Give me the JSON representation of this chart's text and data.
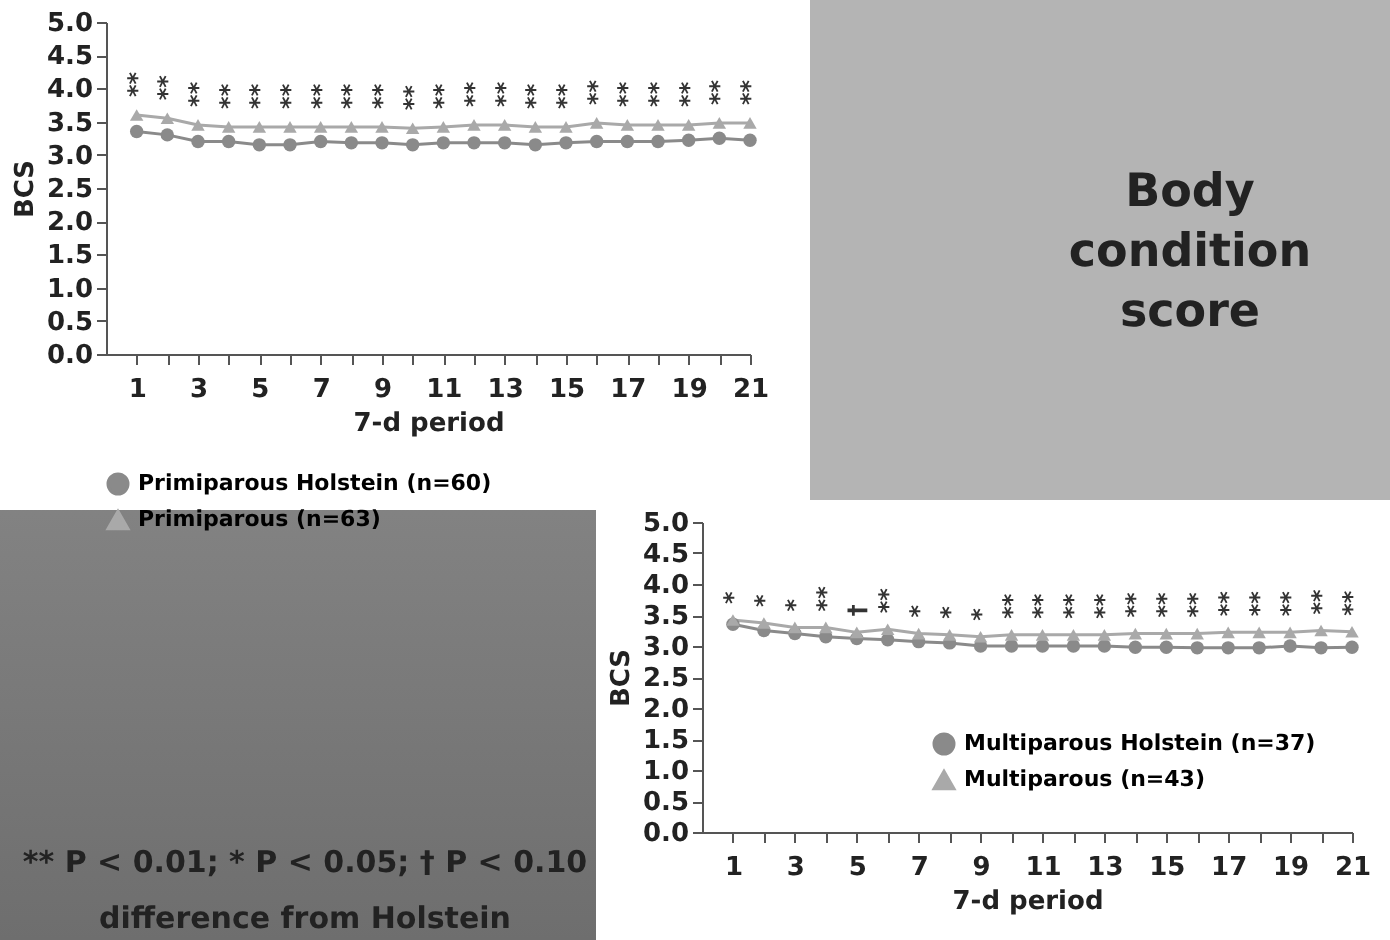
{
  "chart_data": [
    {
      "type": "line",
      "xlabel": "7-d period",
      "ylabel": "BCS",
      "x": [
        1,
        2,
        3,
        4,
        5,
        6,
        7,
        8,
        9,
        10,
        11,
        12,
        13,
        14,
        15,
        16,
        17,
        18,
        19,
        20,
        21
      ],
      "series": [
        {
          "name": "Primiparous Holstein (n=60)",
          "color": "#8a8a8a",
          "marker": "circle",
          "values": [
            3.35,
            3.3,
            3.2,
            3.2,
            3.15,
            3.15,
            3.2,
            3.18,
            3.18,
            3.15,
            3.18,
            3.18,
            3.18,
            3.15,
            3.18,
            3.2,
            3.2,
            3.2,
            3.22,
            3.25,
            3.22
          ]
        },
        {
          "name": "Primiparous (n=63)",
          "color": "#a9a9a9",
          "marker": "triangle",
          "values": [
            3.6,
            3.55,
            3.45,
            3.42,
            3.42,
            3.42,
            3.42,
            3.42,
            3.42,
            3.4,
            3.42,
            3.45,
            3.45,
            3.42,
            3.42,
            3.48,
            3.45,
            3.45,
            3.45,
            3.48,
            3.48
          ]
        }
      ],
      "xlim": [
        0,
        21
      ],
      "xticks": [
        1,
        {
          "value": 2,
          "label": null
        },
        3,
        {
          "value": 4,
          "label": null
        },
        5,
        {
          "value": 6,
          "label": null
        },
        7,
        {
          "value": 8,
          "label": null
        },
        9,
        {
          "value": 10,
          "label": null
        },
        11,
        {
          "value": 12,
          "label": null
        },
        13,
        {
          "value": 14,
          "label": null
        },
        15,
        {
          "value": 16,
          "label": null
        },
        17,
        {
          "value": 18,
          "label": null
        },
        19,
        {
          "value": 20,
          "label": null
        },
        21
      ],
      "ylim": [
        0,
        5
      ],
      "yticks": [
        {
          "value": 0,
          "label": "0.0"
        },
        0.5,
        {
          "value": 1,
          "label": "1.0"
        },
        1.5,
        {
          "value": 2,
          "label": "2.0"
        },
        2.5,
        {
          "value": 3,
          "label": "3.0"
        },
        3.5,
        {
          "value": 4,
          "label": "4.0"
        },
        4.5,
        {
          "value": 5,
          "label": "5.0"
        }
      ],
      "grid": false,
      "legend": "bottom left",
      "line_style": "solid",
      "annotations": [
        {
          "text": "**",
          "x": 1,
          "y": 3.6
        },
        {
          "text": "**",
          "x": 2,
          "y": 3.55
        },
        {
          "text": "**",
          "x": 3,
          "y": 3.45
        },
        {
          "text": "**",
          "x": 4,
          "y": 3.42
        },
        {
          "text": "**",
          "x": 5,
          "y": 3.42
        },
        {
          "text": "**",
          "x": 6,
          "y": 3.42
        },
        {
          "text": "**",
          "x": 7,
          "y": 3.42
        },
        {
          "text": "**",
          "x": 8,
          "y": 3.42
        },
        {
          "text": "**",
          "x": 9,
          "y": 3.42
        },
        {
          "text": "**",
          "x": 10,
          "y": 3.4
        },
        {
          "text": "**",
          "x": 11,
          "y": 3.42
        },
        {
          "text": "**",
          "x": 12,
          "y": 3.45
        },
        {
          "text": "**",
          "x": 13,
          "y": 3.45
        },
        {
          "text": "**",
          "x": 14,
          "y": 3.42
        },
        {
          "text": "**",
          "x": 15,
          "y": 3.42
        },
        {
          "text": "**",
          "x": 16,
          "y": 3.48
        },
        {
          "text": "**",
          "x": 17,
          "y": 3.45
        },
        {
          "text": "**",
          "x": 18,
          "y": 3.45
        },
        {
          "text": "**",
          "x": 19,
          "y": 3.45
        },
        {
          "text": "**",
          "x": 20,
          "y": 3.48
        },
        {
          "text": "**",
          "x": 21,
          "y": 3.48
        }
      ]
    },
    {
      "type": "line",
      "xlabel": "7-d period",
      "ylabel": "BCS",
      "x": [
        1,
        2,
        3,
        4,
        5,
        6,
        7,
        8,
        9,
        10,
        11,
        12,
        13,
        14,
        15,
        16,
        17,
        18,
        19,
        20,
        21
      ],
      "series": [
        {
          "name": "Multiparous Holstein (n=37)",
          "color": "#8a8a8a",
          "marker": "circle",
          "values": [
            3.35,
            3.25,
            3.2,
            3.15,
            3.12,
            3.1,
            3.07,
            3.05,
            3.0,
            3.0,
            3.0,
            3.0,
            3.0,
            2.98,
            2.98,
            2.97,
            2.97,
            2.97,
            3.0,
            2.97,
            2.98
          ]
        },
        {
          "name": "Multiparous (n=43)",
          "color": "#a9a9a9",
          "marker": "triangle",
          "values": [
            3.42,
            3.37,
            3.3,
            3.3,
            3.22,
            3.27,
            3.2,
            3.18,
            3.15,
            3.18,
            3.18,
            3.18,
            3.18,
            3.2,
            3.2,
            3.2,
            3.22,
            3.22,
            3.22,
            3.25,
            3.23
          ]
        }
      ],
      "xlim": [
        0,
        21
      ],
      "xticks": [
        1,
        {
          "value": 2,
          "label": null
        },
        3,
        {
          "value": 4,
          "label": null
        },
        5,
        {
          "value": 6,
          "label": null
        },
        7,
        {
          "value": 8,
          "label": null
        },
        9,
        {
          "value": 10,
          "label": null
        },
        11,
        {
          "value": 12,
          "label": null
        },
        13,
        {
          "value": 14,
          "label": null
        },
        15,
        {
          "value": 16,
          "label": null
        },
        17,
        {
          "value": 18,
          "label": null
        },
        19,
        {
          "value": 20,
          "label": null
        },
        21
      ],
      "ylim": [
        0,
        5
      ],
      "yticks": [
        {
          "value": 0,
          "label": "0.0"
        },
        0.5,
        {
          "value": 1,
          "label": "1.0"
        },
        1.5,
        {
          "value": 2,
          "label": "2.0"
        },
        2.5,
        {
          "value": 3,
          "label": "3.0"
        },
        3.5,
        {
          "value": 4,
          "label": "4.0"
        },
        4.5,
        {
          "value": 5,
          "label": "5.0"
        }
      ],
      "grid": false,
      "legend": "bottom right",
      "line_style": "solid",
      "annotations": [
        {
          "text": "*",
          "x": 1,
          "y": 3.42
        },
        {
          "text": "*",
          "x": 2,
          "y": 3.37
        },
        {
          "text": "*",
          "x": 3,
          "y": 3.3
        },
        {
          "text": "**",
          "x": 4,
          "y": 3.3
        },
        {
          "text": "†",
          "x": 5,
          "y": 3.22
        },
        {
          "text": "**",
          "x": 6,
          "y": 3.27
        },
        {
          "text": "*",
          "x": 7,
          "y": 3.2
        },
        {
          "text": "*",
          "x": 8,
          "y": 3.18
        },
        {
          "text": "*",
          "x": 9,
          "y": 3.15
        },
        {
          "text": "**",
          "x": 10,
          "y": 3.18
        },
        {
          "text": "**",
          "x": 11,
          "y": 3.18
        },
        {
          "text": "**",
          "x": 12,
          "y": 3.18
        },
        {
          "text": "**",
          "x": 13,
          "y": 3.18
        },
        {
          "text": "**",
          "x": 14,
          "y": 3.2
        },
        {
          "text": "**",
          "x": 15,
          "y": 3.2
        },
        {
          "text": "**",
          "x": 16,
          "y": 3.2
        },
        {
          "text": "**",
          "x": 17,
          "y": 3.22
        },
        {
          "text": "**",
          "x": 18,
          "y": 3.22
        },
        {
          "text": "**",
          "x": 19,
          "y": 3.22
        },
        {
          "text": "**",
          "x": 20,
          "y": 3.25
        },
        {
          "text": "**",
          "x": 21,
          "y": 3.23
        }
      ]
    },
    {
      "type": "other",
      "title": "Body condition score",
      "annotations": [
        "** P < 0.01; * P < 0.05; † P < 0.10",
        "difference from Holstein"
      ]
    }
  ]
}
